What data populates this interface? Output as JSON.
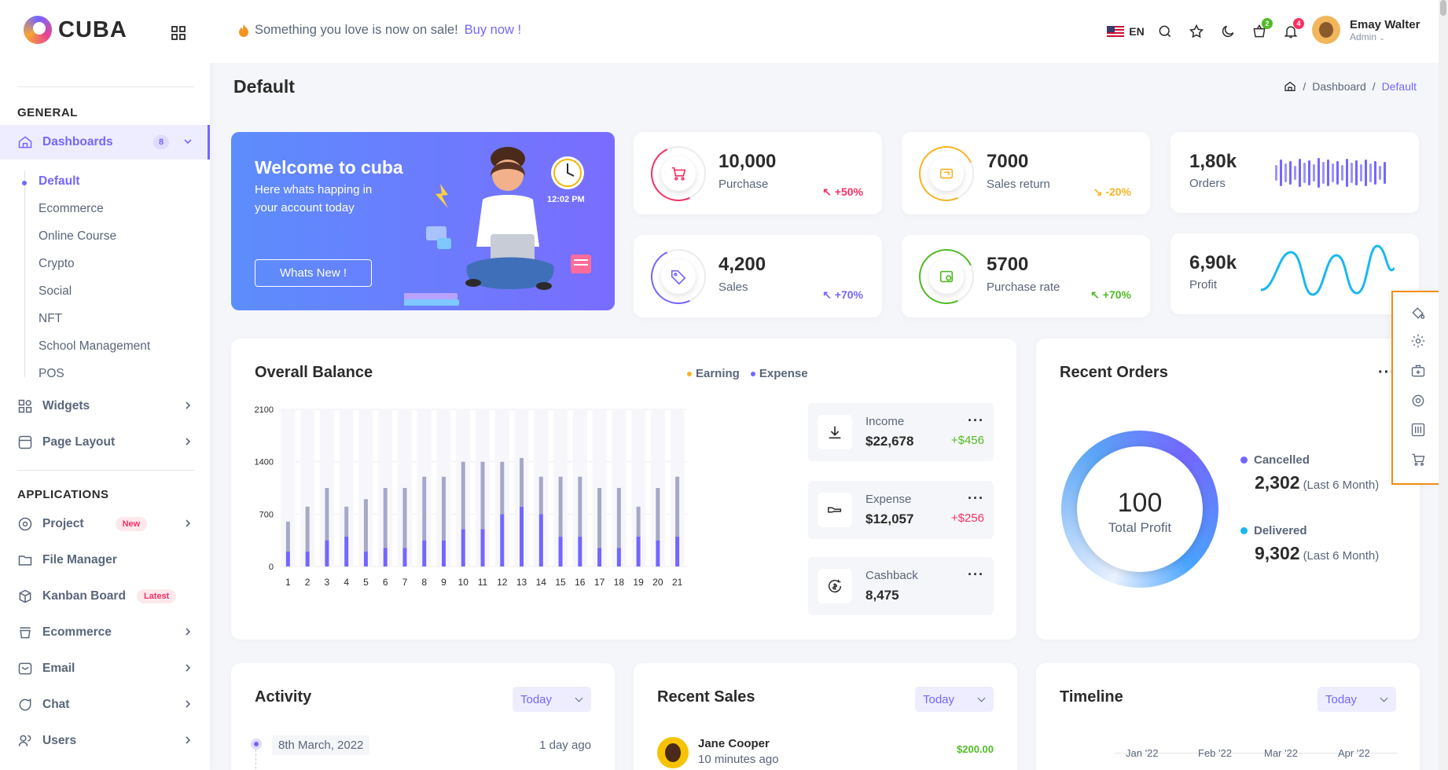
{
  "brand": {
    "name": "CUBA",
    "accent": "#7366ff"
  },
  "sidebar": {
    "sections": [
      {
        "title": "GENERAL"
      },
      {
        "title": "APPLICATIONS"
      }
    ],
    "dashboards": {
      "label": "Dashboards",
      "count": "8"
    },
    "sub_items": [
      {
        "label": "Default"
      },
      {
        "label": "Ecommerce"
      },
      {
        "label": "Online Course"
      },
      {
        "label": "Crypto"
      },
      {
        "label": "Social"
      },
      {
        "label": "NFT"
      },
      {
        "label": "School Management"
      },
      {
        "label": "POS"
      }
    ],
    "general": [
      {
        "label": "Widgets"
      },
      {
        "label": "Page Layout"
      }
    ],
    "apps": [
      {
        "label": "Project",
        "badge": "New"
      },
      {
        "label": "File Manager"
      },
      {
        "label": "Kanban Board",
        "badge": "Latest"
      },
      {
        "label": "Ecommerce"
      },
      {
        "label": "Email"
      },
      {
        "label": "Chat"
      },
      {
        "label": "Users"
      }
    ]
  },
  "header": {
    "sale_text": "Something you love is now on sale!",
    "sale_link": "Buy now !",
    "language": "EN",
    "cart_count": "2",
    "notif_count": "4",
    "user_name": "Emay Walter",
    "user_role": "Admin"
  },
  "page": {
    "title": "Default",
    "breadcrumb": [
      "Dashboard",
      "Default"
    ]
  },
  "welcome": {
    "title": "Welcome to cuba",
    "text": "Here whats happing in your account today",
    "button": "Whats New !",
    "time": "12:02 PM"
  },
  "stats": [
    {
      "value": "10,000",
      "label": "Purchase",
      "change": "+50%",
      "color": "#f73164"
    },
    {
      "value": "7000",
      "label": "Sales return",
      "change": "-20%",
      "color": "#f8b425"
    },
    {
      "value": "4,200",
      "label": "Sales",
      "change": "+70%",
      "color": "#7366ff"
    },
    {
      "value": "5700",
      "label": "Purchase rate",
      "change": "+70%",
      "color": "#51bb25"
    }
  ],
  "minis": [
    {
      "value": "1,80k",
      "label": "Orders"
    },
    {
      "value": "6,90k",
      "label": "Profit"
    }
  ],
  "balance": {
    "title": "Overall Balance",
    "legend": [
      {
        "name": "Earning",
        "color": "#f8b425"
      },
      {
        "name": "Expense",
        "color": "#7366ff"
      }
    ],
    "side": [
      {
        "label": "Income",
        "value": "$22,678",
        "delta": "+$456",
        "color": "#51bb25"
      },
      {
        "label": "Expense",
        "value": "$12,057",
        "delta": "+$256",
        "color": "#f73164"
      },
      {
        "label": "Cashback",
        "value": "8,475",
        "delta": "",
        "color": "#2b2b2b"
      }
    ]
  },
  "chart_data": {
    "type": "bar",
    "stacked": true,
    "categories": [
      "1",
      "2",
      "3",
      "4",
      "5",
      "6",
      "7",
      "8",
      "9",
      "10",
      "11",
      "12",
      "13",
      "14",
      "15",
      "16",
      "17",
      "18",
      "19",
      "20",
      "21"
    ],
    "series": [
      {
        "name": "Expense",
        "color": "#7366ff",
        "values": [
          200,
          200,
          350,
          400,
          200,
          250,
          250,
          350,
          350,
          500,
          500,
          700,
          800,
          700,
          400,
          400,
          250,
          250,
          400,
          350,
          400
        ]
      },
      {
        "name": "Earning",
        "color": "#a5a9c8",
        "values": [
          400,
          600,
          700,
          400,
          700,
          800,
          800,
          850,
          850,
          900,
          900,
          700,
          650,
          500,
          800,
          800,
          800,
          800,
          400,
          700,
          800
        ]
      }
    ],
    "yticks": [
      "0",
      "700",
      "1400",
      "2100"
    ],
    "ylim": [
      0,
      2100
    ]
  },
  "orders": {
    "title": "Recent Orders",
    "center_value": "100",
    "center_label": "Total Profit",
    "cancelled": {
      "label": "Cancelled",
      "value": "2,302",
      "period": "(Last 6 Month)",
      "color": "#7366ff"
    },
    "delivered": {
      "label": "Delivered",
      "value": "9,302",
      "period": "(Last 6 Month)",
      "color": "#1ab8f0"
    }
  },
  "activity": {
    "title": "Activity",
    "filter": "Today",
    "date": "8th March, 2022",
    "ago": "1 day ago"
  },
  "recent_sales": {
    "title": "Recent Sales",
    "filter": "Today",
    "name": "Jane Cooper",
    "time": "10 minutes ago",
    "amount": "$200.00"
  },
  "timeline": {
    "title": "Timeline",
    "filter": "Today",
    "months": [
      "Jan '22",
      "Feb '22",
      "Mar '22",
      "Apr '22"
    ]
  }
}
